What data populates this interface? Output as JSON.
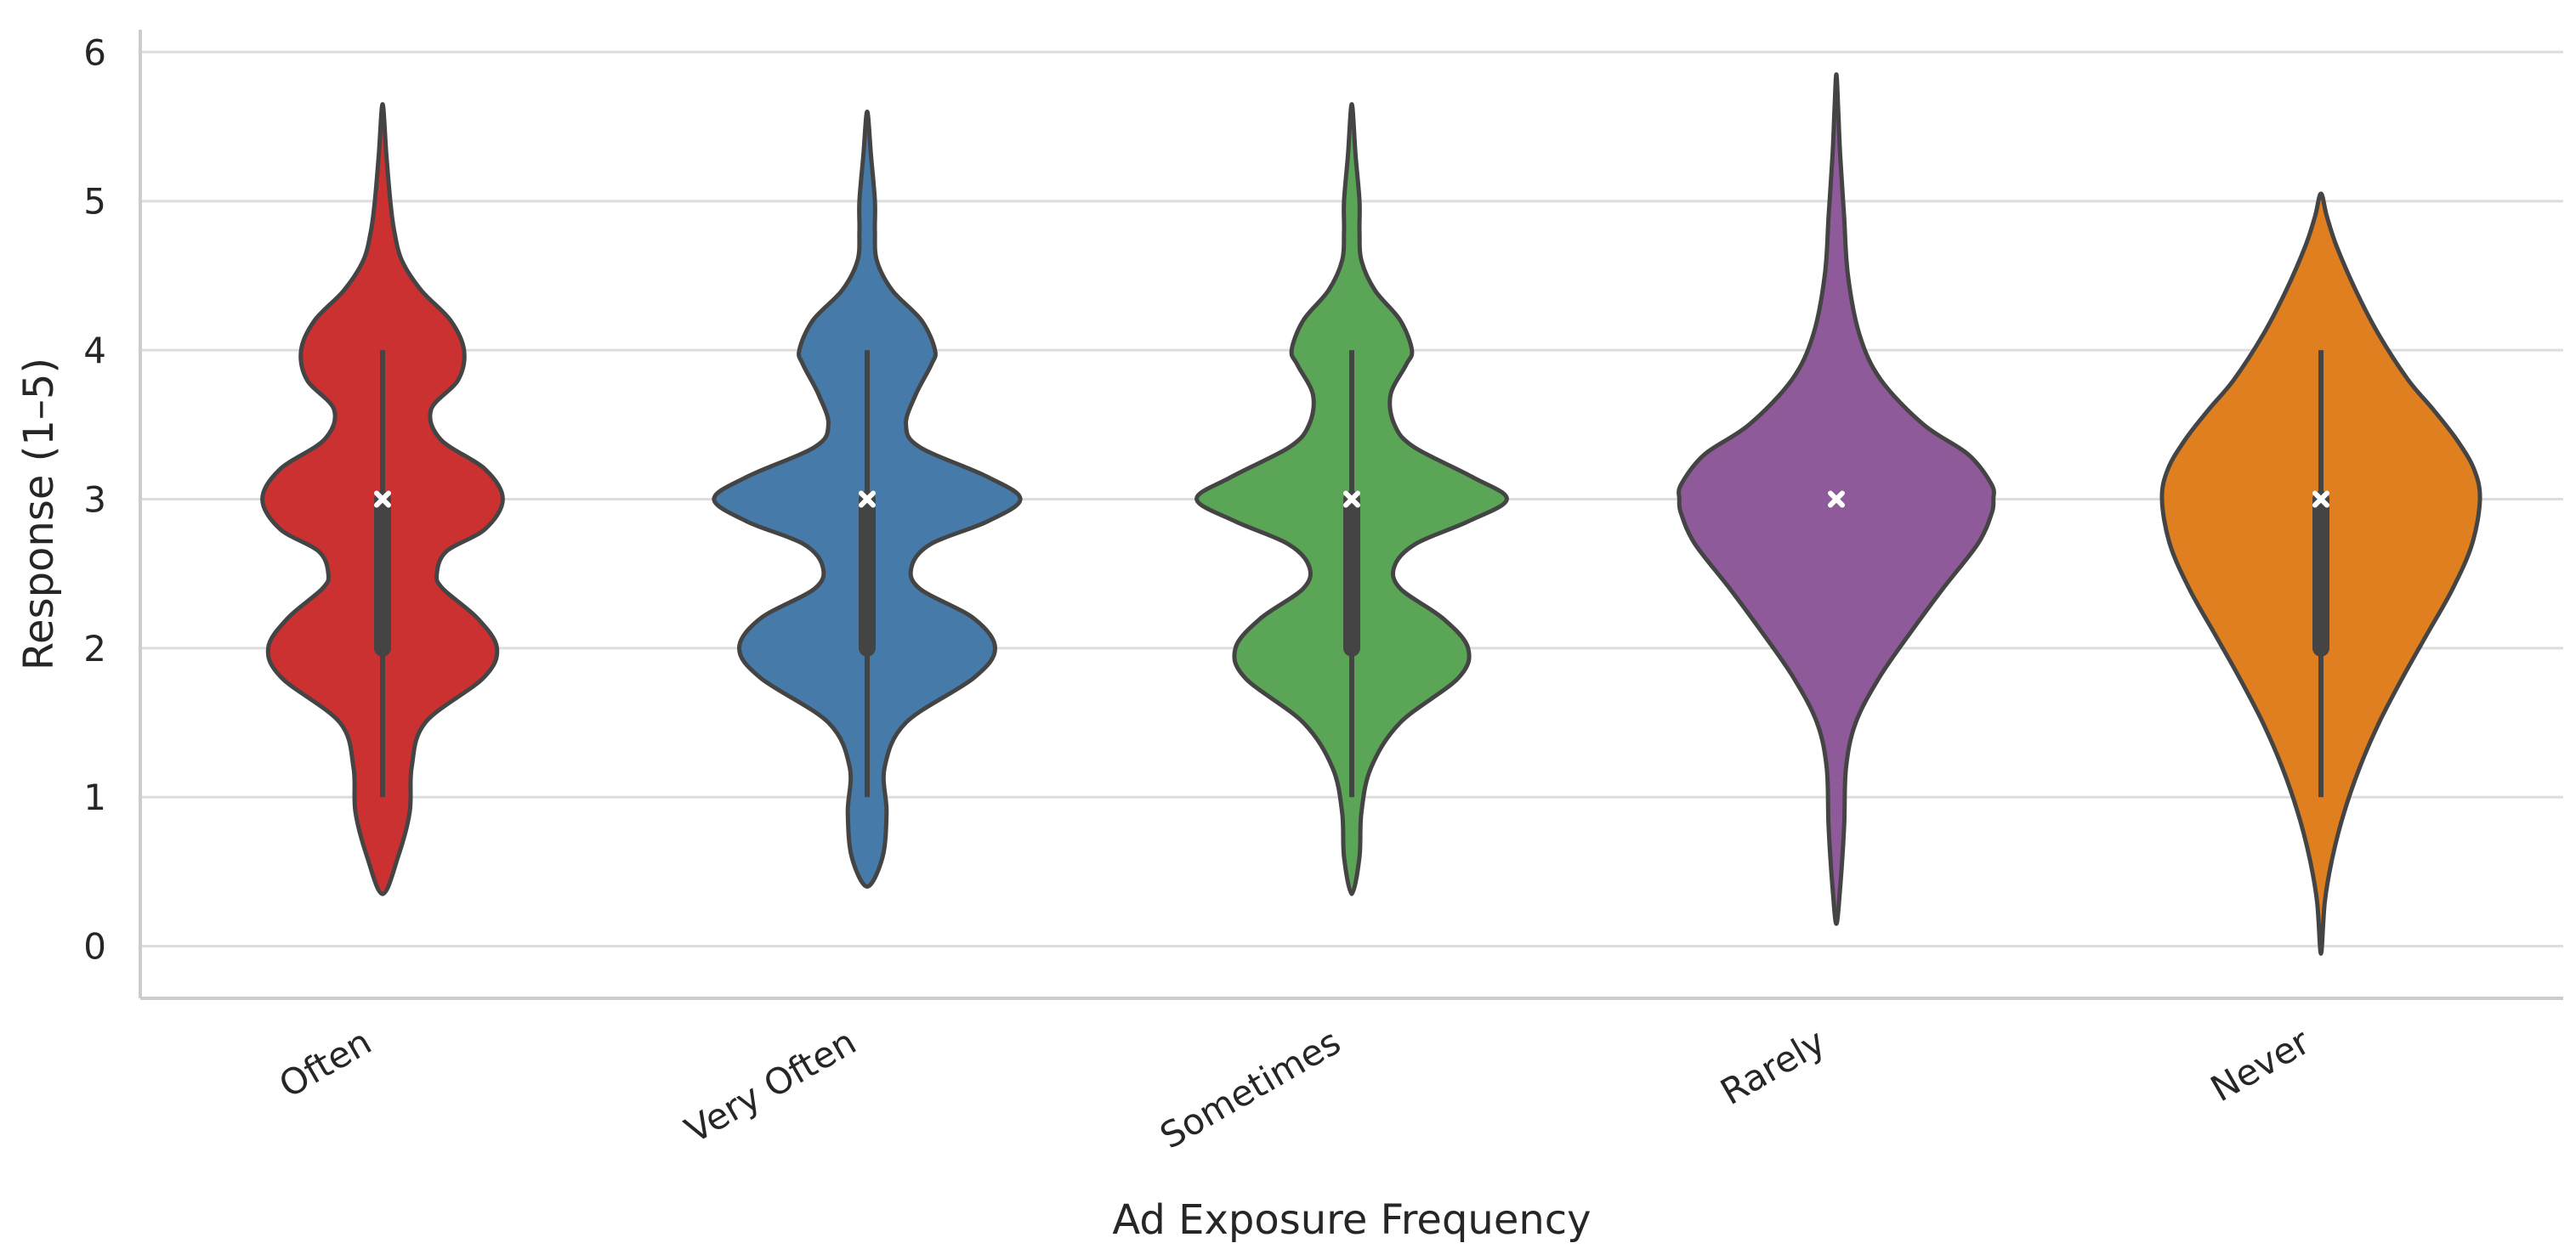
{
  "chart_data": {
    "type": "violin",
    "title": "",
    "xlabel": "Ad Exposure Frequency",
    "ylabel": "Response (1–5)",
    "ylim": [
      -0.35,
      6.15
    ],
    "yticks": [
      0,
      1,
      2,
      3,
      4,
      5,
      6
    ],
    "grid": "horizontal",
    "categories": [
      "Often",
      "Very Often",
      "Sometimes",
      "Rarely",
      "Never"
    ],
    "colors": [
      "#cc3131",
      "#457aa9",
      "#5aa556",
      "#8e5a9a",
      "#e07f20"
    ],
    "edge_color": "#444444",
    "series": [
      {
        "category": "Often",
        "range": [
          0.35,
          5.65
        ],
        "min": 1,
        "q1": 2,
        "median": 3,
        "q3": 3,
        "max": 4,
        "density": [
          [
            0.35,
            0.0
          ],
          [
            0.6,
            0.08
          ],
          [
            0.9,
            0.14
          ],
          [
            1.2,
            0.15
          ],
          [
            1.5,
            0.22
          ],
          [
            1.8,
            0.52
          ],
          [
            2.0,
            0.59
          ],
          [
            2.2,
            0.49
          ],
          [
            2.4,
            0.31
          ],
          [
            2.5,
            0.28
          ],
          [
            2.65,
            0.33
          ],
          [
            2.8,
            0.53
          ],
          [
            3.0,
            0.62
          ],
          [
            3.2,
            0.53
          ],
          [
            3.4,
            0.3
          ],
          [
            3.6,
            0.25
          ],
          [
            3.8,
            0.39
          ],
          [
            4.0,
            0.42
          ],
          [
            4.2,
            0.35
          ],
          [
            4.4,
            0.2
          ],
          [
            4.6,
            0.1
          ],
          [
            4.8,
            0.06
          ],
          [
            5.0,
            0.04
          ],
          [
            5.3,
            0.02
          ],
          [
            5.65,
            0.0
          ]
        ]
      },
      {
        "category": "Very Often",
        "range": [
          0.4,
          5.6
        ],
        "min": 1,
        "q1": 2,
        "median": 3,
        "q3": 3,
        "max": 4,
        "density": [
          [
            0.4,
            0.0
          ],
          [
            0.6,
            0.08
          ],
          [
            0.9,
            0.1
          ],
          [
            1.2,
            0.09
          ],
          [
            1.5,
            0.2
          ],
          [
            1.8,
            0.55
          ],
          [
            2.0,
            0.66
          ],
          [
            2.2,
            0.55
          ],
          [
            2.4,
            0.27
          ],
          [
            2.55,
            0.23
          ],
          [
            2.7,
            0.33
          ],
          [
            2.85,
            0.62
          ],
          [
            3.0,
            0.79
          ],
          [
            3.15,
            0.62
          ],
          [
            3.35,
            0.27
          ],
          [
            3.5,
            0.2
          ],
          [
            3.7,
            0.25
          ],
          [
            3.9,
            0.33
          ],
          [
            4.0,
            0.35
          ],
          [
            4.2,
            0.28
          ],
          [
            4.4,
            0.13
          ],
          [
            4.6,
            0.05
          ],
          [
            4.8,
            0.04
          ],
          [
            5.0,
            0.04
          ],
          [
            5.3,
            0.02
          ],
          [
            5.6,
            0.0
          ]
        ]
      },
      {
        "category": "Sometimes",
        "range": [
          0.35,
          5.65
        ],
        "min": 1,
        "q1": 2,
        "median": 3,
        "q3": 3,
        "max": 4,
        "density": [
          [
            0.35,
            0.0
          ],
          [
            0.6,
            0.04
          ],
          [
            0.9,
            0.05
          ],
          [
            1.2,
            0.1
          ],
          [
            1.5,
            0.25
          ],
          [
            1.8,
            0.55
          ],
          [
            2.0,
            0.6
          ],
          [
            2.2,
            0.47
          ],
          [
            2.4,
            0.25
          ],
          [
            2.55,
            0.22
          ],
          [
            2.7,
            0.33
          ],
          [
            2.85,
            0.6
          ],
          [
            3.0,
            0.8
          ],
          [
            3.15,
            0.62
          ],
          [
            3.35,
            0.32
          ],
          [
            3.5,
            0.22
          ],
          [
            3.7,
            0.2
          ],
          [
            3.9,
            0.28
          ],
          [
            4.0,
            0.31
          ],
          [
            4.2,
            0.25
          ],
          [
            4.4,
            0.12
          ],
          [
            4.6,
            0.05
          ],
          [
            4.8,
            0.04
          ],
          [
            5.0,
            0.04
          ],
          [
            5.3,
            0.02
          ],
          [
            5.65,
            0.0
          ]
        ]
      },
      {
        "category": "Rarely",
        "range": [
          0.15,
          5.85
        ],
        "min": 3,
        "q1": 3,
        "median": 3,
        "q3": 3,
        "max": 3,
        "density": [
          [
            0.15,
            0.0
          ],
          [
            0.4,
            0.02
          ],
          [
            0.8,
            0.04
          ],
          [
            1.2,
            0.05
          ],
          [
            1.5,
            0.1
          ],
          [
            1.8,
            0.22
          ],
          [
            2.1,
            0.38
          ],
          [
            2.4,
            0.55
          ],
          [
            2.7,
            0.73
          ],
          [
            2.9,
            0.8
          ],
          [
            3.0,
            0.81
          ],
          [
            3.1,
            0.8
          ],
          [
            3.3,
            0.68
          ],
          [
            3.5,
            0.45
          ],
          [
            3.8,
            0.23
          ],
          [
            4.1,
            0.12
          ],
          [
            4.5,
            0.06
          ],
          [
            4.9,
            0.04
          ],
          [
            5.3,
            0.02
          ],
          [
            5.6,
            0.01
          ],
          [
            5.85,
            0.0
          ]
        ]
      },
      {
        "category": "Never",
        "range": [
          -0.05,
          5.05
        ],
        "min": 1,
        "q1": 2,
        "median": 3,
        "q3": 3,
        "max": 4,
        "density": [
          [
            -0.05,
            0.0
          ],
          [
            0.3,
            0.02
          ],
          [
            0.6,
            0.06
          ],
          [
            0.9,
            0.12
          ],
          [
            1.2,
            0.2
          ],
          [
            1.5,
            0.3
          ],
          [
            1.8,
            0.42
          ],
          [
            2.1,
            0.55
          ],
          [
            2.4,
            0.68
          ],
          [
            2.7,
            0.78
          ],
          [
            3.0,
            0.82
          ],
          [
            3.2,
            0.79
          ],
          [
            3.4,
            0.7
          ],
          [
            3.6,
            0.58
          ],
          [
            3.8,
            0.45
          ],
          [
            4.1,
            0.3
          ],
          [
            4.4,
            0.18
          ],
          [
            4.7,
            0.08
          ],
          [
            4.9,
            0.03
          ],
          [
            5.05,
            0.0
          ]
        ]
      }
    ]
  }
}
